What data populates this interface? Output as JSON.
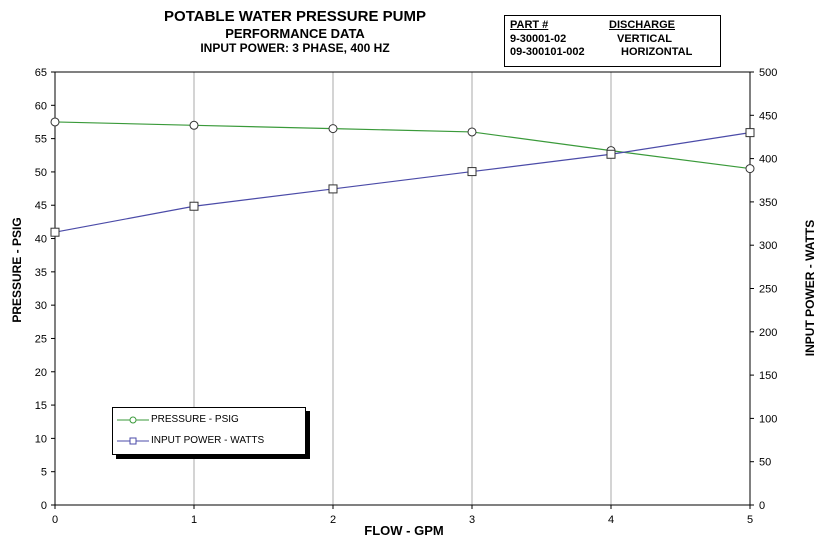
{
  "titles": {
    "line1": "POTABLE WATER PRESSURE PUMP",
    "line2": "PERFORMANCE DATA",
    "line3": "INPUT POWER: 3 PHASE, 400 HZ"
  },
  "info_table": {
    "headers": [
      "PART #",
      "DISCHARGE"
    ],
    "rows": [
      [
        "9-30001-02",
        "VERTICAL"
      ],
      [
        "09-300101-002",
        "HORIZONTAL"
      ]
    ]
  },
  "chart_data": {
    "type": "line",
    "xlabel": "FLOW - GPM",
    "ylabel": "PRESSURE - PSIG",
    "y2label": "INPUT POWER - WATTS",
    "xlim": [
      0,
      5
    ],
    "ylim": [
      0,
      65
    ],
    "y2lim": [
      0,
      500
    ],
    "x_ticks": [
      "0",
      "1",
      "2",
      "3",
      "4",
      "5"
    ],
    "y_ticks": [
      "0",
      "5",
      "10",
      "15",
      "20",
      "25",
      "30",
      "35",
      "40",
      "45",
      "50",
      "55",
      "60",
      "65"
    ],
    "y2_ticks": [
      "0",
      "50",
      "100",
      "150",
      "200",
      "250",
      "300",
      "350",
      "400",
      "450",
      "500"
    ],
    "grid": "vertical",
    "legend_position": "lower-left",
    "series": [
      {
        "name": "PRESSURE - PSIG",
        "axis": "left",
        "color": "#3a9a3a",
        "marker": "circle",
        "x": [
          0,
          1,
          2,
          3,
          4,
          5
        ],
        "values": [
          57.5,
          57,
          56.5,
          56,
          53.2,
          50.5
        ]
      },
      {
        "name": "INPUT POWER - WATTS",
        "axis": "right",
        "color": "#4b4ba8",
        "marker": "square",
        "x": [
          0,
          1,
          2,
          3,
          4,
          5
        ],
        "values": [
          315,
          345,
          365,
          385,
          405,
          430
        ]
      }
    ]
  }
}
